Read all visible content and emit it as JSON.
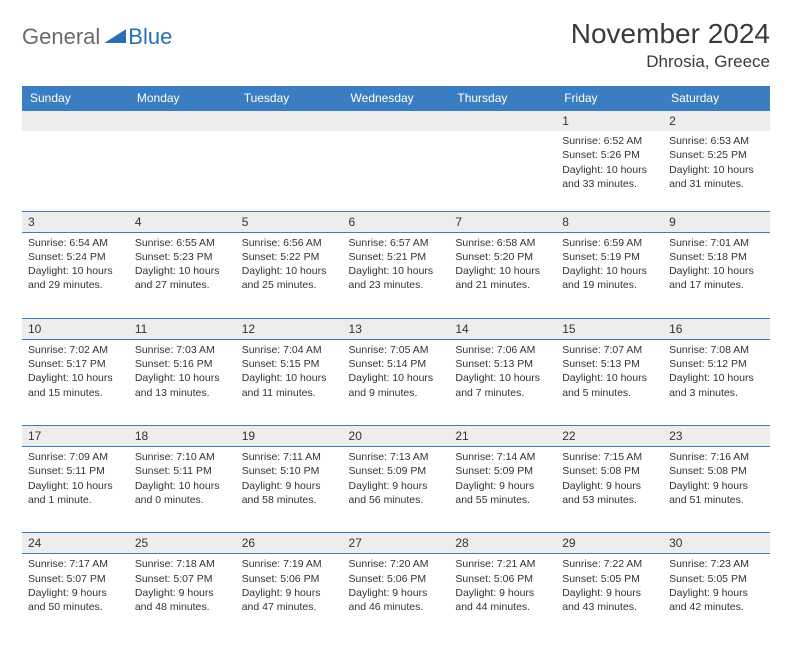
{
  "brand": {
    "part1": "General",
    "part2": "Blue"
  },
  "title": "November 2024",
  "location": "Dhrosia, Greece",
  "colors": {
    "header_bg": "#3a7ec1",
    "header_text": "#ffffff",
    "daynum_bg": "#ededed",
    "border": "#3a7ec1",
    "brand_gray": "#6b6b6b",
    "brand_blue": "#2a6fb5",
    "text": "#333333",
    "page_bg": "#ffffff"
  },
  "fonts": {
    "body_size": 10.5,
    "header_size": 12,
    "title_size": 28,
    "location_size": 17
  },
  "weekdays": [
    "Sunday",
    "Monday",
    "Tuesday",
    "Wednesday",
    "Thursday",
    "Friday",
    "Saturday"
  ],
  "weeks": [
    {
      "nums": [
        "",
        "",
        "",
        "",
        "",
        "1",
        "2"
      ],
      "cells": [
        null,
        null,
        null,
        null,
        null,
        {
          "sunrise": "Sunrise: 6:52 AM",
          "sunset": "Sunset: 5:26 PM",
          "day1": "Daylight: 10 hours",
          "day2": "and 33 minutes."
        },
        {
          "sunrise": "Sunrise: 6:53 AM",
          "sunset": "Sunset: 5:25 PM",
          "day1": "Daylight: 10 hours",
          "day2": "and 31 minutes."
        }
      ]
    },
    {
      "nums": [
        "3",
        "4",
        "5",
        "6",
        "7",
        "8",
        "9"
      ],
      "cells": [
        {
          "sunrise": "Sunrise: 6:54 AM",
          "sunset": "Sunset: 5:24 PM",
          "day1": "Daylight: 10 hours",
          "day2": "and 29 minutes."
        },
        {
          "sunrise": "Sunrise: 6:55 AM",
          "sunset": "Sunset: 5:23 PM",
          "day1": "Daylight: 10 hours",
          "day2": "and 27 minutes."
        },
        {
          "sunrise": "Sunrise: 6:56 AM",
          "sunset": "Sunset: 5:22 PM",
          "day1": "Daylight: 10 hours",
          "day2": "and 25 minutes."
        },
        {
          "sunrise": "Sunrise: 6:57 AM",
          "sunset": "Sunset: 5:21 PM",
          "day1": "Daylight: 10 hours",
          "day2": "and 23 minutes."
        },
        {
          "sunrise": "Sunrise: 6:58 AM",
          "sunset": "Sunset: 5:20 PM",
          "day1": "Daylight: 10 hours",
          "day2": "and 21 minutes."
        },
        {
          "sunrise": "Sunrise: 6:59 AM",
          "sunset": "Sunset: 5:19 PM",
          "day1": "Daylight: 10 hours",
          "day2": "and 19 minutes."
        },
        {
          "sunrise": "Sunrise: 7:01 AM",
          "sunset": "Sunset: 5:18 PM",
          "day1": "Daylight: 10 hours",
          "day2": "and 17 minutes."
        }
      ]
    },
    {
      "nums": [
        "10",
        "11",
        "12",
        "13",
        "14",
        "15",
        "16"
      ],
      "cells": [
        {
          "sunrise": "Sunrise: 7:02 AM",
          "sunset": "Sunset: 5:17 PM",
          "day1": "Daylight: 10 hours",
          "day2": "and 15 minutes."
        },
        {
          "sunrise": "Sunrise: 7:03 AM",
          "sunset": "Sunset: 5:16 PM",
          "day1": "Daylight: 10 hours",
          "day2": "and 13 minutes."
        },
        {
          "sunrise": "Sunrise: 7:04 AM",
          "sunset": "Sunset: 5:15 PM",
          "day1": "Daylight: 10 hours",
          "day2": "and 11 minutes."
        },
        {
          "sunrise": "Sunrise: 7:05 AM",
          "sunset": "Sunset: 5:14 PM",
          "day1": "Daylight: 10 hours",
          "day2": "and 9 minutes."
        },
        {
          "sunrise": "Sunrise: 7:06 AM",
          "sunset": "Sunset: 5:13 PM",
          "day1": "Daylight: 10 hours",
          "day2": "and 7 minutes."
        },
        {
          "sunrise": "Sunrise: 7:07 AM",
          "sunset": "Sunset: 5:13 PM",
          "day1": "Daylight: 10 hours",
          "day2": "and 5 minutes."
        },
        {
          "sunrise": "Sunrise: 7:08 AM",
          "sunset": "Sunset: 5:12 PM",
          "day1": "Daylight: 10 hours",
          "day2": "and 3 minutes."
        }
      ]
    },
    {
      "nums": [
        "17",
        "18",
        "19",
        "20",
        "21",
        "22",
        "23"
      ],
      "cells": [
        {
          "sunrise": "Sunrise: 7:09 AM",
          "sunset": "Sunset: 5:11 PM",
          "day1": "Daylight: 10 hours",
          "day2": "and 1 minute."
        },
        {
          "sunrise": "Sunrise: 7:10 AM",
          "sunset": "Sunset: 5:11 PM",
          "day1": "Daylight: 10 hours",
          "day2": "and 0 minutes."
        },
        {
          "sunrise": "Sunrise: 7:11 AM",
          "sunset": "Sunset: 5:10 PM",
          "day1": "Daylight: 9 hours",
          "day2": "and 58 minutes."
        },
        {
          "sunrise": "Sunrise: 7:13 AM",
          "sunset": "Sunset: 5:09 PM",
          "day1": "Daylight: 9 hours",
          "day2": "and 56 minutes."
        },
        {
          "sunrise": "Sunrise: 7:14 AM",
          "sunset": "Sunset: 5:09 PM",
          "day1": "Daylight: 9 hours",
          "day2": "and 55 minutes."
        },
        {
          "sunrise": "Sunrise: 7:15 AM",
          "sunset": "Sunset: 5:08 PM",
          "day1": "Daylight: 9 hours",
          "day2": "and 53 minutes."
        },
        {
          "sunrise": "Sunrise: 7:16 AM",
          "sunset": "Sunset: 5:08 PM",
          "day1": "Daylight: 9 hours",
          "day2": "and 51 minutes."
        }
      ]
    },
    {
      "nums": [
        "24",
        "25",
        "26",
        "27",
        "28",
        "29",
        "30"
      ],
      "cells": [
        {
          "sunrise": "Sunrise: 7:17 AM",
          "sunset": "Sunset: 5:07 PM",
          "day1": "Daylight: 9 hours",
          "day2": "and 50 minutes."
        },
        {
          "sunrise": "Sunrise: 7:18 AM",
          "sunset": "Sunset: 5:07 PM",
          "day1": "Daylight: 9 hours",
          "day2": "and 48 minutes."
        },
        {
          "sunrise": "Sunrise: 7:19 AM",
          "sunset": "Sunset: 5:06 PM",
          "day1": "Daylight: 9 hours",
          "day2": "and 47 minutes."
        },
        {
          "sunrise": "Sunrise: 7:20 AM",
          "sunset": "Sunset: 5:06 PM",
          "day1": "Daylight: 9 hours",
          "day2": "and 46 minutes."
        },
        {
          "sunrise": "Sunrise: 7:21 AM",
          "sunset": "Sunset: 5:06 PM",
          "day1": "Daylight: 9 hours",
          "day2": "and 44 minutes."
        },
        {
          "sunrise": "Sunrise: 7:22 AM",
          "sunset": "Sunset: 5:05 PM",
          "day1": "Daylight: 9 hours",
          "day2": "and 43 minutes."
        },
        {
          "sunrise": "Sunrise: 7:23 AM",
          "sunset": "Sunset: 5:05 PM",
          "day1": "Daylight: 9 hours",
          "day2": "and 42 minutes."
        }
      ]
    }
  ]
}
